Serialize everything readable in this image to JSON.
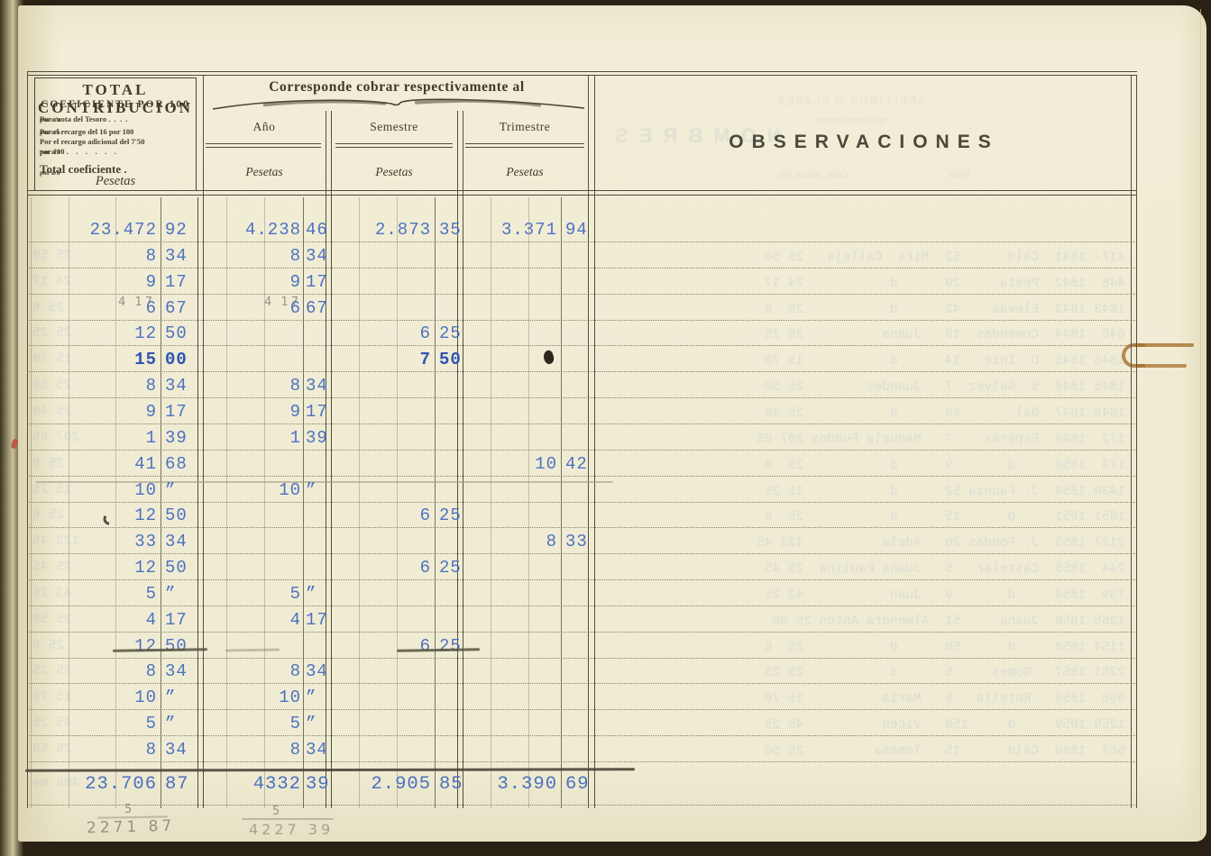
{
  "colors": {
    "ink_blue": "#4d72c2",
    "pencil": "#97927f",
    "paper": "#f0ecd3",
    "rust_mark": "#a9712d",
    "print": "#413d2c"
  },
  "header_left": {
    "title": "TOTAL  CONTRIBUCION",
    "subtitle": "COEFICIENTE  POR  100",
    "lines": [
      {
        "label": "Por cuota del Tesoro .  .  .  .",
        "leader": true,
        "suffix": "por o/o",
        "big": false
      },
      {
        "label": "Por el recargo del 16 por 100",
        "leader": true,
        "suffix": "por o/o",
        "big": false
      },
      {
        "label": "Por el recargo adicional del 7'50",
        "leader": false,
        "suffix": "",
        "big": false
      },
      {
        "label": "por 100 .    .    .    .    .    .",
        "leader": true,
        "suffix": "por o/o",
        "big": false
      },
      {
        "label": "Total coeficiente .",
        "leader": true,
        "suffix": "por o/o",
        "big": true
      }
    ],
    "pesetas_label": "Pesetas"
  },
  "header_main": {
    "title": "Corresponde  cobrar  respectivamente  al",
    "columns": [
      {
        "label": "Año",
        "unit": "Pesetas"
      },
      {
        "label": "Semestre",
        "unit": "Pesetas"
      },
      {
        "label": "Trimestre",
        "unit": "Pesetas"
      }
    ]
  },
  "observations": {
    "title": "OBSERVACIONES"
  },
  "rows": [
    {
      "total": "23.472",
      "total_c": "92",
      "ano": "4.238",
      "ano_c": "46",
      "sem": "2.873",
      "sem_c": "35",
      "tri": "3.371",
      "tri_c": "94",
      "ghost": "",
      "ghost_left": ""
    },
    {
      "total": "8",
      "total_c": "34",
      "ano": "8",
      "ano_c": "34",
      "ghost": "417- 1841  Cald      52  Mira  Calleja   25 50",
      "ghost_left": "25 50"
    },
    {
      "total": "9",
      "total_c": "17",
      "ano": "9",
      "ano_c": "17",
      "ghost": "448  1842  Pesta     29      d           24 17",
      "ghost_left": "24 17"
    },
    {
      "total": "6",
      "total_c": "67",
      "ano": "6",
      "ano_c": "67",
      "ghost": "1843 1843  Elevas    42      d           25  6",
      "ghost_left": "25 6"
    },
    {
      "total": "12",
      "total_c": "50",
      "sem": "6",
      "sem_c": "25",
      "ghost": "645  1844  Comendas  19   Juana          25 25",
      "ghost_left": "25 25"
    },
    {
      "total": "15",
      "total_c": "00",
      "sem": "7",
      "sem_c": "50",
      "bold": true,
      "ghost": "1846 1845  D. Inié   14      d           15 70",
      "ghost_left": "15 70"
    },
    {
      "total": "8",
      "total_c": "34",
      "ano": "8",
      "ano_c": "34",
      "ghost": "1845 1846  S. Galvez  7   Juandes        25 50",
      "ghost_left": "25 50"
    },
    {
      "total": "9",
      "total_c": "17",
      "ano": "9",
      "ano_c": "17",
      "ghost": "1846 1847  Dal       69      d           25 40",
      "ghost_left": "25 40"
    },
    {
      "total": "1",
      "total_c": "39",
      "ano": "1",
      "ano_c": "39",
      "ghost": "172  1849  Esperas    7   Manuela Fundos 207 65",
      "ghost_left": "207 65"
    },
    {
      "total": "41",
      "total_c": "68",
      "tri": "10",
      "tri_c": "42",
      "underline": true,
      "ghost": "173  1850     d       9      d           25  8",
      "ghost_left": "25 8"
    },
    {
      "total": "10",
      "total_c": "”",
      "ano": "10",
      "ano_c": "”",
      "ghost": "1430 1850  J. Faunia 52      d           15 25",
      "ghost_left": "15 25"
    },
    {
      "total": "12",
      "total_c": "50",
      "sem": "6",
      "sem_c": "25",
      "tick": true,
      "ghost": "1851 1851     d      15      d           25  6",
      "ghost_left": "25 6"
    },
    {
      "total": "33",
      "total_c": "34",
      "tri": "8",
      "tri_c": "33",
      "ghost": "2127 1853  J. Fondas 20   Adela          123 45",
      "ghost_left": "123 45"
    },
    {
      "total": "12",
      "total_c": "50",
      "sem": "6",
      "sem_c": "25",
      "ghost": "244  1855  Castelar   5   Juana Paulina  25 45",
      "ghost_left": "25 45"
    },
    {
      "total": "5",
      "total_c": "”",
      "ano": "5",
      "ano_c": "”",
      "ghost": "739  1854     d       9   Juan           43 25",
      "ghost_left": "43 25"
    },
    {
      "total": "4",
      "total_c": "17",
      "ano": "4",
      "ano_c": "17",
      "ghost": "1355 1856  Juana     51  Almendra Anton 25 50",
      "ghost_left": "25 50"
    },
    {
      "total": "12",
      "total_c": "50",
      "sem": "6",
      "sem_c": "25",
      "struck": true,
      "ghost": "1154 1858     d      50      d           25  6",
      "ghost_left": "25 6"
    },
    {
      "total": "8",
      "total_c": "34",
      "ano": "8",
      "ano_c": "34",
      "ghost": "2261 1857  .Gomes     5      d           25 25",
      "ghost_left": "25 25"
    },
    {
      "total": "10",
      "total_c": "”",
      "ano": "10",
      "ano_c": "”",
      "ghost": "998  1856  .Rotella   9   Maria          15 70",
      "ghost_left": "15 70"
    },
    {
      "total": "5",
      "total_c": "”",
      "ano": "5",
      "ano_c": "”",
      "ghost": "1259 1859     d     150   Vicen          45 25",
      "ghost_left": "45 25"
    },
    {
      "total": "8",
      "total_c": "34",
      "ano": "8",
      "ano_c": "34",
      "ghost": "567  1860  Cald      15   Tomasa         25 50",
      "ghost_left": "25 50"
    }
  ],
  "totals": {
    "total": "23.706",
    "total_c": "87",
    "ano": "4332",
    "ano_c": "39",
    "sem": "2.905",
    "sem_c": "85",
    "tri": "3.390",
    "tri_c": "69",
    "ghost_left": "406 me"
  },
  "pencil": {
    "interline": {
      "total": "4 17",
      "ano": "4 17"
    },
    "sum_total": {
      "mark": "5",
      "value": "2271 87"
    },
    "sum_ano": {
      "mark": "5",
      "value": "4227 39"
    }
  },
  "bleed_header": {
    "nombres": "NOMBRES",
    "apellidos": "APELLIDOS O CLASES",
    "que": "que contribuyen",
    "calle": "Calle, plaza, etc.",
    "num": "Núm."
  }
}
